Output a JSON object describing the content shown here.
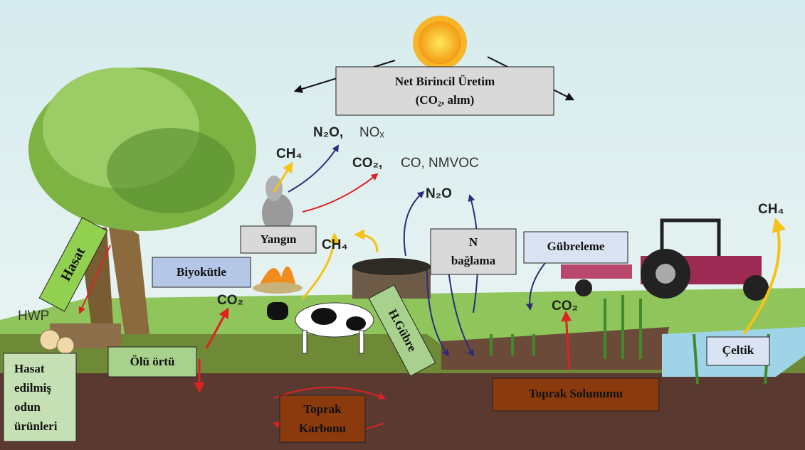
{
  "boxes": {
    "net_primary": [
      "Net Birincil Üretim",
      "(CO₂, alım)"
    ],
    "fire": "Yangın",
    "biomass": "Biyokütle",
    "harvest": "Hasat",
    "hwp_products": [
      "Hasat",
      "edilmiş",
      "odun",
      "ürünleri"
    ],
    "litter": "Ölü örtü",
    "manure": "H.Gübre",
    "n_fixation": [
      "N",
      "bağlama"
    ],
    "fertilization": "Gübreleme",
    "soil_respiration": "Toprak Solunumu",
    "soil_carbon": [
      "Toprak",
      "Karbonu"
    ],
    "rice": "Çeltik"
  },
  "gases": {
    "fire_ch4": "CH₄",
    "fire_n2o": "N₂O,",
    "fire_nox": "NOₓ",
    "fire_co2": "CO₂,",
    "fire_co": "CO, NMVOC",
    "manure_ch4": "CH₄",
    "n2o": "N₂O",
    "biomass_co2": "CO₂",
    "soil_co2": "CO₂",
    "rice_ch4": "CH₄",
    "hwp": "HWP"
  }
}
